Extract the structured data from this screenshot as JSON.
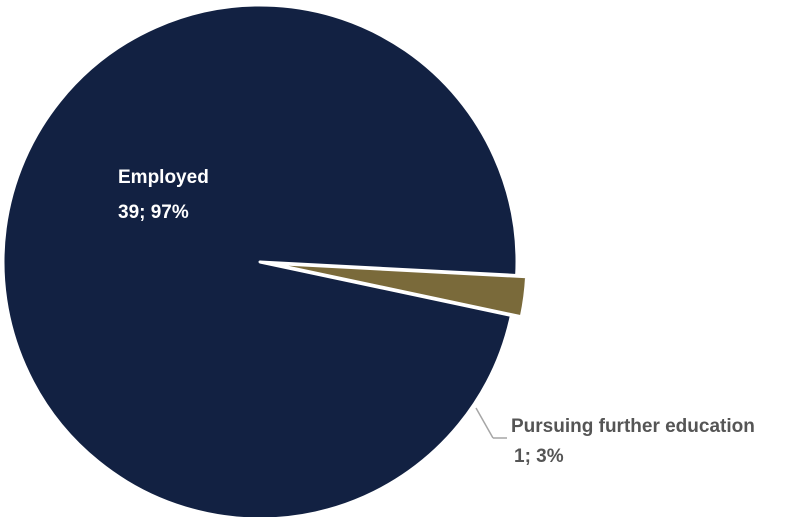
{
  "chart_data": {
    "type": "pie",
    "slices": [
      {
        "label": "Employed",
        "value": 39,
        "percent_label": "39; 97%",
        "color": "#122142",
        "label_color": "#ffffff"
      },
      {
        "label": "Pursuing further education",
        "value": 1,
        "percent_label": "1; 3%",
        "color": "#7a6a3a",
        "label_color": "#555555"
      }
    ],
    "title": "",
    "legend": "none",
    "start_angle_deg": 12,
    "exploded_slice": 1,
    "leader_line_color": "#a6a6a6"
  }
}
